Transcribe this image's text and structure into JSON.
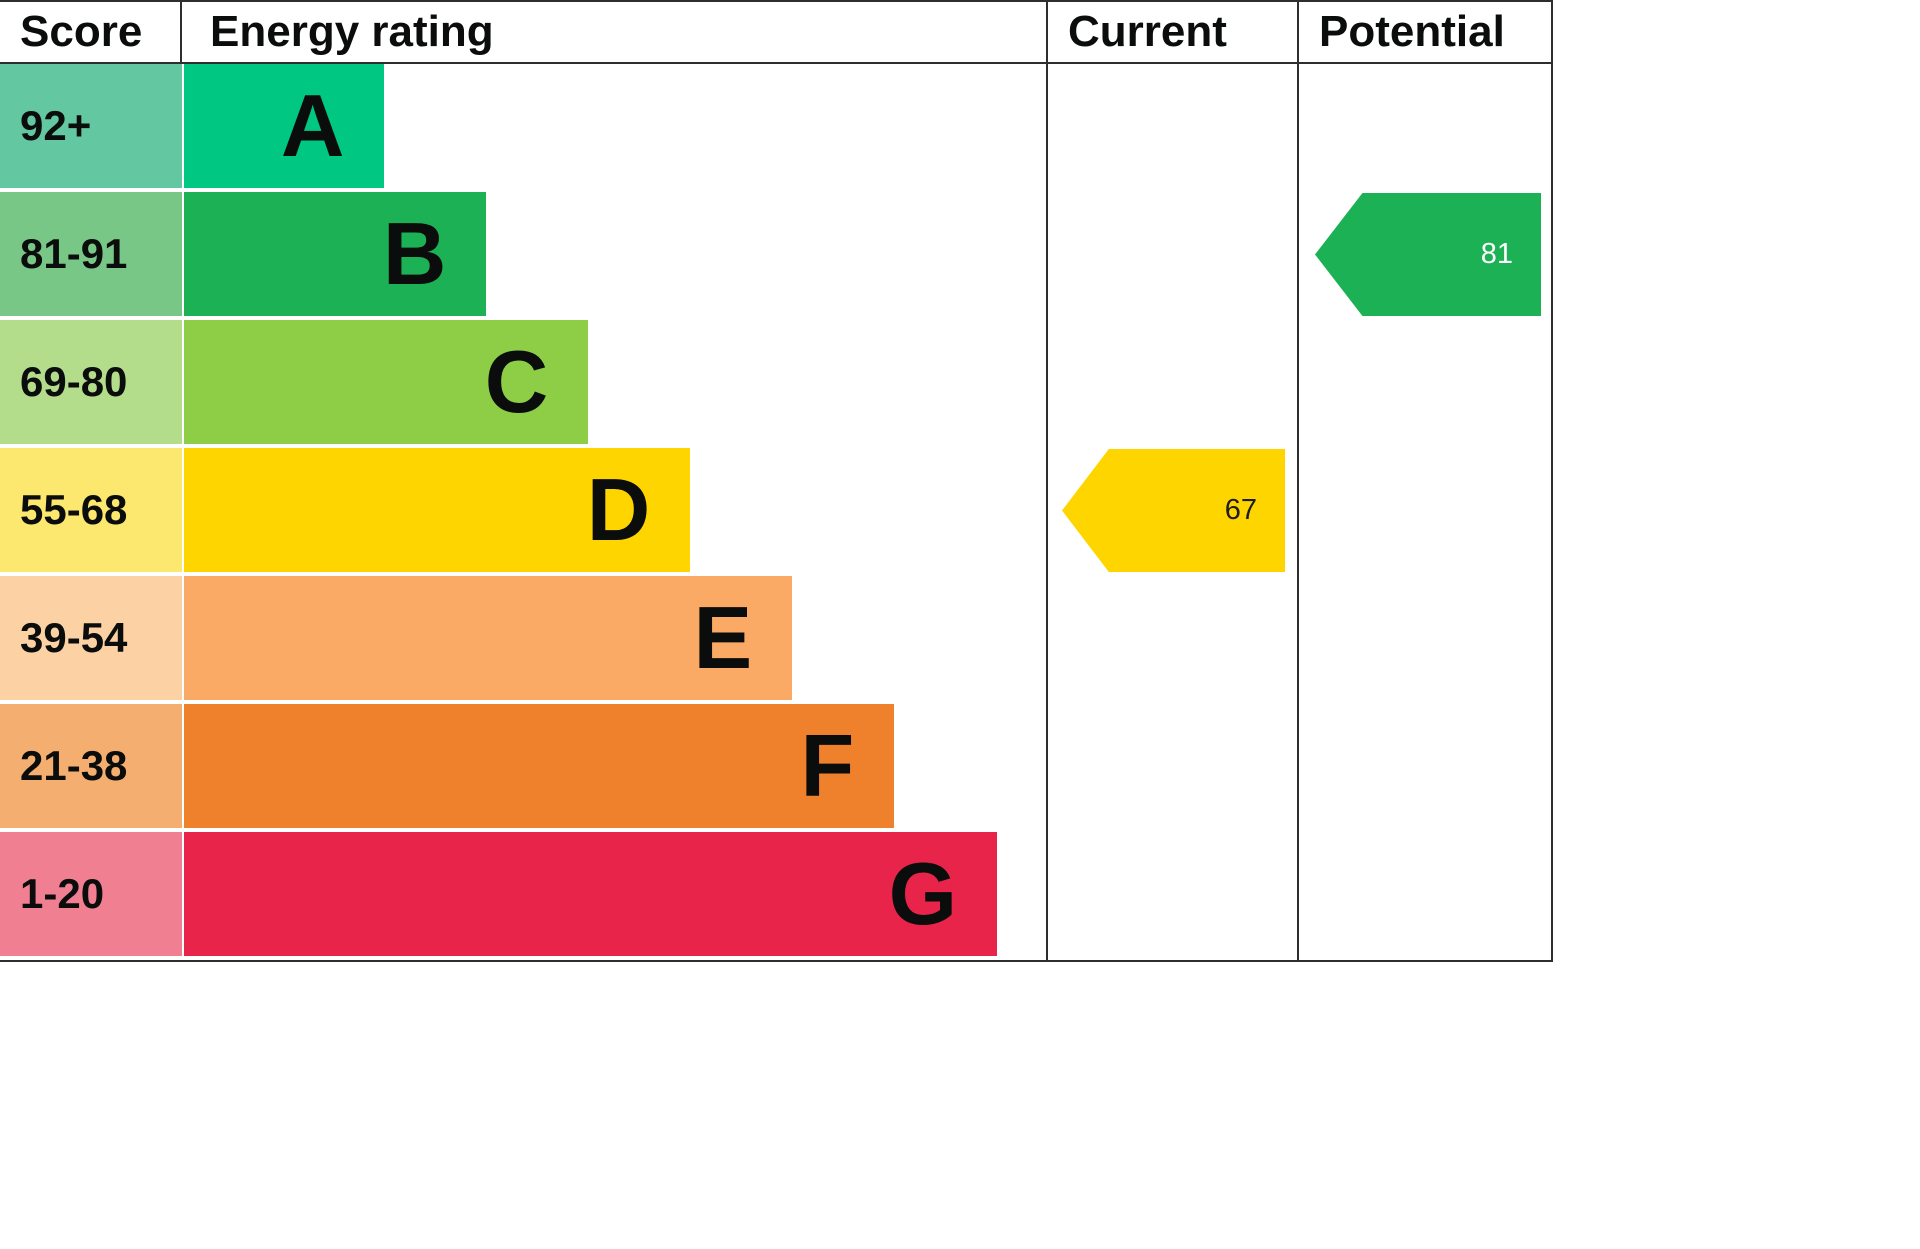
{
  "header": {
    "score": "Score",
    "energy_rating": "Energy rating",
    "current": "Current",
    "potential": "Potential"
  },
  "bands": [
    {
      "score": "92+",
      "letter": "A",
      "bar_color": "#00c781",
      "score_color": "#63c7a1",
      "width_pct": 23.2
    },
    {
      "score": "81-91",
      "letter": "B",
      "bar_color": "#1db155",
      "score_color": "#79c787",
      "width_pct": 35.0
    },
    {
      "score": "69-80",
      "letter": "C",
      "bar_color": "#8dce46",
      "score_color": "#b3dc8b",
      "width_pct": 46.8
    },
    {
      "score": "55-68",
      "letter": "D",
      "bar_color": "#ffd500",
      "score_color": "#fce76f",
      "width_pct": 58.6
    },
    {
      "score": "39-54",
      "letter": "E",
      "bar_color": "#fbaa65",
      "score_color": "#fcd2a5",
      "width_pct": 70.4
    },
    {
      "score": "21-38",
      "letter": "F",
      "bar_color": "#f0812c",
      "score_color": "#f4ae70",
      "width_pct": 82.2
    },
    {
      "score": "1-20",
      "letter": "G",
      "bar_color": "#e9244a",
      "score_color": "#f07f92",
      "width_pct": 94.1
    }
  ],
  "current": {
    "value": "67",
    "band_letter": "D",
    "color": "#ffd500",
    "text_color": "#1c1c1c"
  },
  "potential": {
    "value": "81",
    "band_letter": "B",
    "color": "#1db155",
    "text_color": "#ffffff"
  },
  "chart_data": {
    "type": "bar",
    "title": "Energy rating (EPC band chart)",
    "categories": [
      "A",
      "B",
      "C",
      "D",
      "E",
      "F",
      "G"
    ],
    "score_ranges": [
      "92+",
      "81-91",
      "69-80",
      "55-68",
      "39-54",
      "21-38",
      "1-20"
    ],
    "band_colors": [
      "#00c781",
      "#1db155",
      "#8dce46",
      "#ffd500",
      "#fbaa65",
      "#f0812c",
      "#e9244a"
    ],
    "bar_relative_widths_pct": [
      23.2,
      35.0,
      46.8,
      58.6,
      70.4,
      82.2,
      94.1
    ],
    "markers": [
      {
        "name": "Current",
        "value": 67,
        "band": "D"
      },
      {
        "name": "Potential",
        "value": 81,
        "band": "B"
      }
    ],
    "columns": [
      "Score",
      "Energy rating",
      "Current",
      "Potential"
    ],
    "legend_position": "none",
    "grid": false
  }
}
